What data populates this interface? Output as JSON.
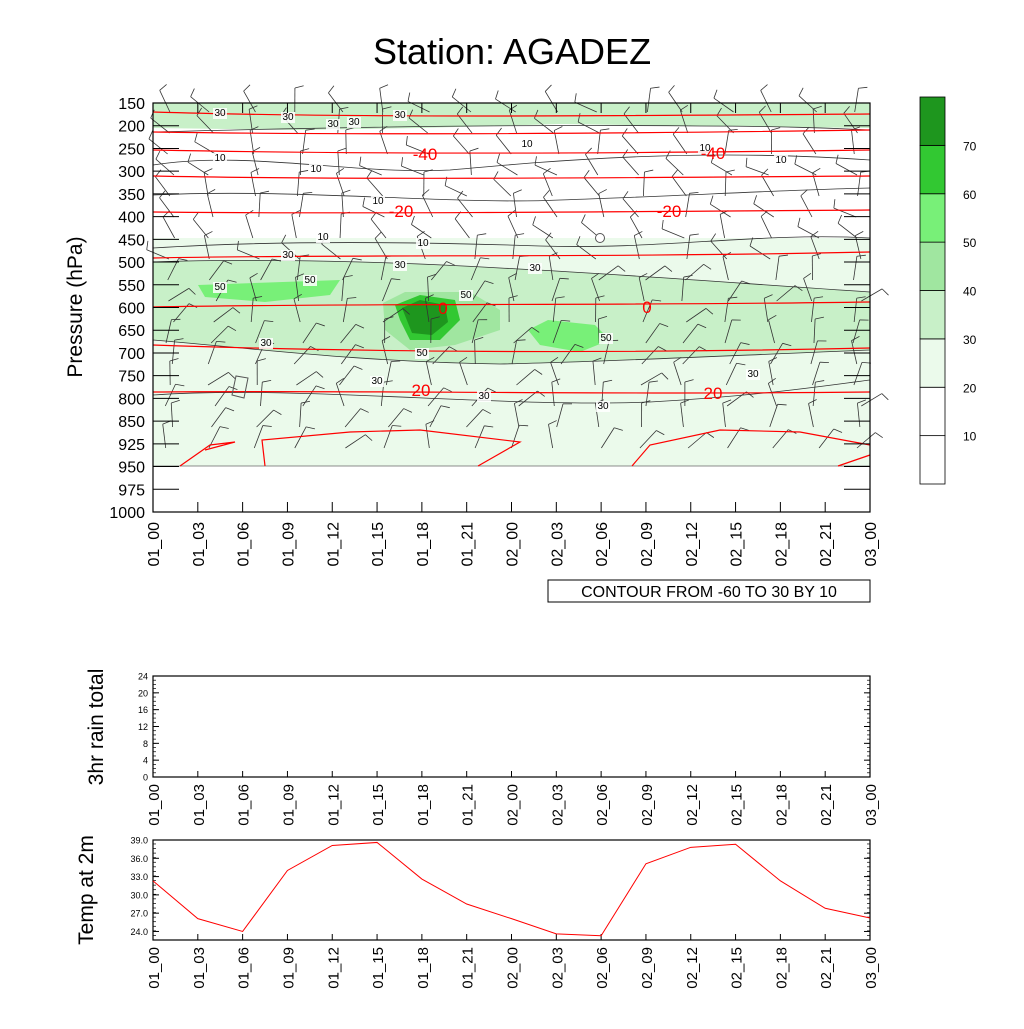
{
  "title": "Station: AGADEZ",
  "time_labels": [
    "01_00",
    "01_03",
    "01_06",
    "01_09",
    "01_12",
    "01_15",
    "01_18",
    "01_21",
    "02_00",
    "02_03",
    "02_06",
    "02_09",
    "02_12",
    "02_15",
    "02_18",
    "02_21",
    "03_00"
  ],
  "chart_data": [
    {
      "type": "heatmap",
      "panel": "vertical-cross-section",
      "ylabel": "Pressure (hPa)",
      "y_ticks": [
        150,
        200,
        250,
        300,
        350,
        400,
        450,
        500,
        550,
        600,
        650,
        700,
        750,
        800,
        850,
        925,
        950,
        975,
        1000
      ],
      "y_scale": "pressure levels (reversed)",
      "annotation": "CONTOUR FROM -60 TO 30 BY 10",
      "colorbar": {
        "levels": [
          10,
          20,
          30,
          40,
          50,
          60,
          70
        ],
        "colors": [
          "#ffffff",
          "#ffffff",
          "#ebfaeb",
          "#c8f0c8",
          "#a0e6a0",
          "#78f078",
          "#32c832",
          "#1e961e"
        ]
      },
      "shading_label_values": [
        "30",
        "30",
        "30",
        "30",
        "30",
        "10",
        "10",
        "10",
        "10",
        "10",
        "10",
        "10",
        "10",
        "30",
        "30",
        "50",
        "50",
        "50",
        "30",
        "50",
        "50",
        "30",
        "30",
        "30",
        "30",
        "30"
      ],
      "temperature_contour_labels": [
        "-40",
        "-40",
        "-20",
        "-20",
        "0",
        "0",
        "20",
        "20"
      ]
    },
    {
      "type": "line",
      "panel": "rain",
      "ylabel": "3hr rain total",
      "y_ticks": [
        0,
        4,
        8,
        12,
        16,
        20,
        24
      ],
      "ylim": [
        0,
        24
      ],
      "series": [
        {
          "values": [
            0,
            0,
            0,
            0,
            0,
            0,
            0,
            0,
            0,
            0,
            0,
            0,
            0,
            0,
            0,
            0,
            0
          ]
        }
      ]
    },
    {
      "type": "line",
      "panel": "temperature",
      "ylabel": "Temp at 2m",
      "y_ticks": [
        "24.0",
        "27.0",
        "30.0",
        "33.0",
        "36.0",
        "39.0"
      ],
      "ylim": [
        22.6,
        39.0
      ],
      "series": [
        {
          "color": "#ff0000",
          "values": [
            32.3,
            26.1,
            24.0,
            34.0,
            38.1,
            38.6,
            32.6,
            28.5,
            26.1,
            23.6,
            23.3,
            35.1,
            37.8,
            38.3,
            32.3,
            27.8,
            26.2
          ]
        }
      ]
    }
  ]
}
